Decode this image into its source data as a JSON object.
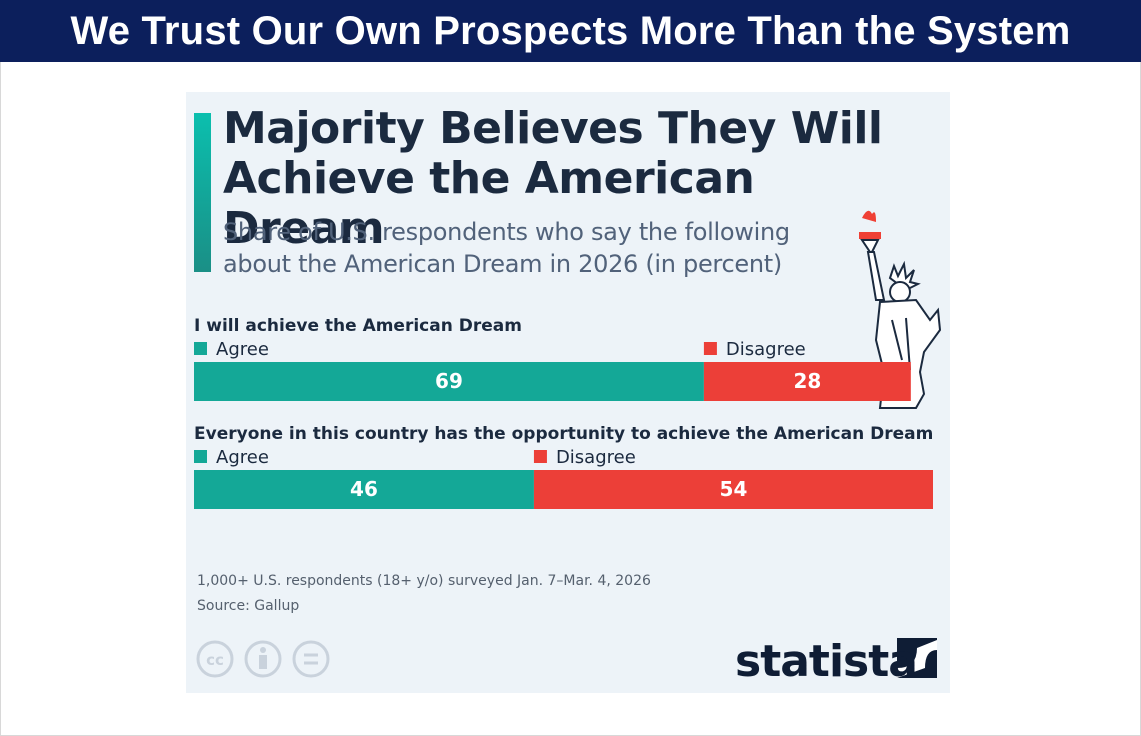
{
  "header": {
    "title": "We Trust Our Own Prospects More Than the System"
  },
  "chart_data": {
    "type": "bar",
    "orientation": "horizontal",
    "stacked": true,
    "title": "Majority Believes They Will Achieve the American Dream",
    "subtitle": "Share of U.S. respondents who say the following about the American Dream in 2026 (in percent)",
    "categories": [
      "I will achieve the American Dream",
      "Everyone in this country has the opportunity to achieve the American Dream"
    ],
    "series": [
      {
        "name": "Agree",
        "color": "#14a897",
        "values": [
          69,
          46
        ]
      },
      {
        "name": "Disagree",
        "color": "#ec3f38",
        "values": [
          28,
          54
        ]
      }
    ],
    "xlim": [
      0,
      100
    ],
    "notes": [
      "1,000+ U.S. respondents (18+ y/o) surveyed Jan. 7–Mar. 4, 2026",
      "Source: Gallup"
    ],
    "branding": "statista"
  }
}
